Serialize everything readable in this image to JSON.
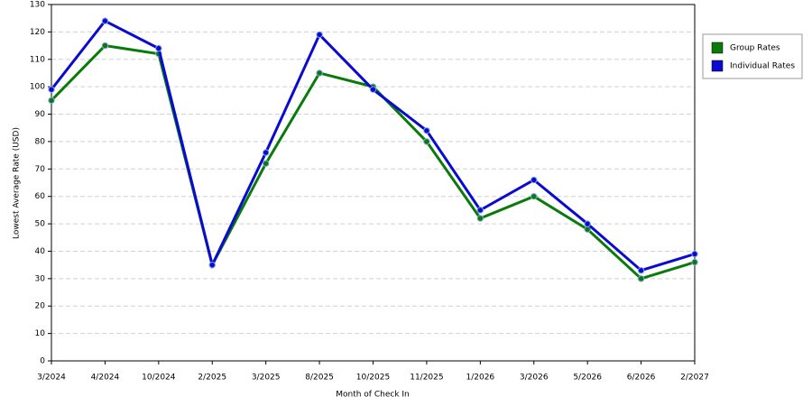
{
  "chart_data": {
    "type": "line",
    "x_label": "Month of Check In",
    "y_label": "Lowest Average Rate (USD)",
    "categories": [
      "3/2024",
      "4/2024",
      "10/2024",
      "2/2025",
      "3/2025",
      "8/2025",
      "10/2025",
      "11/2025",
      "1/2026",
      "3/2026",
      "5/2026",
      "6/2026",
      "2/2027"
    ],
    "series": [
      {
        "name": "Group Rates",
        "color": "#0a7a0a",
        "values": [
          95,
          115,
          112,
          35,
          72,
          105,
          100,
          80,
          52,
          60,
          48,
          30,
          36
        ]
      },
      {
        "name": "Individual Rates",
        "color": "#0a0ad0",
        "values": [
          99,
          124,
          114,
          35,
          76,
          119,
          99,
          84,
          55,
          66,
          50,
          33,
          39
        ]
      }
    ],
    "ylim": [
      0,
      130
    ],
    "yticks": [
      0,
      10,
      20,
      30,
      40,
      50,
      60,
      70,
      80,
      90,
      100,
      110,
      120,
      130
    ],
    "grid": true,
    "legend": "right"
  }
}
